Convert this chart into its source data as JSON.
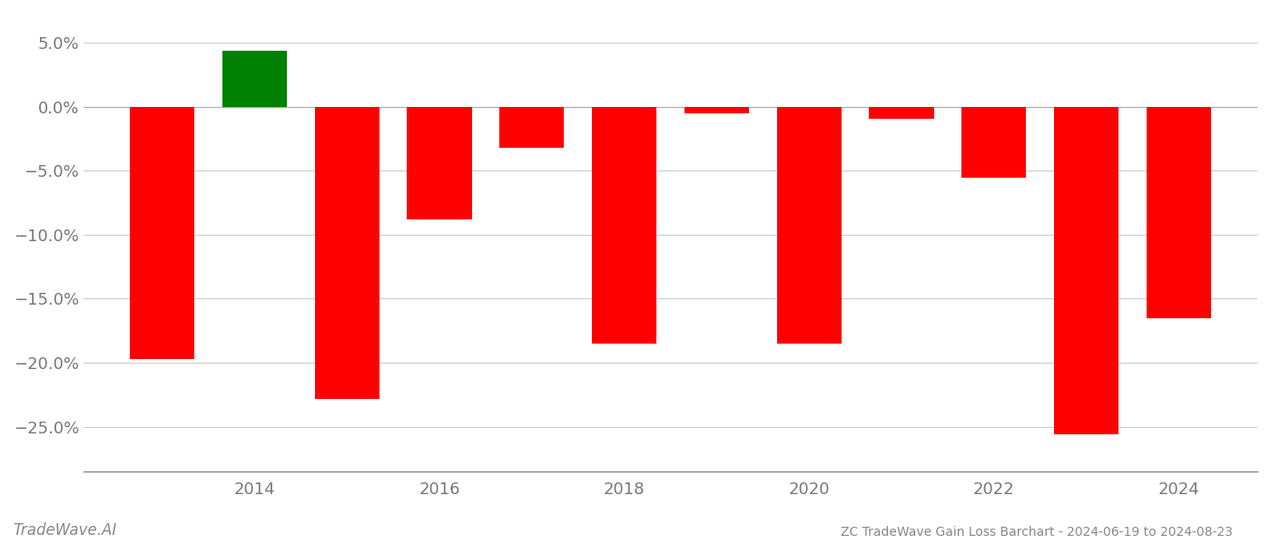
{
  "years": [
    2013,
    2014,
    2015,
    2016,
    2017,
    2018,
    2019,
    2020,
    2021,
    2022,
    2023,
    2024
  ],
  "values": [
    -0.197,
    0.044,
    -0.228,
    -0.088,
    -0.032,
    -0.185,
    -0.005,
    -0.185,
    -0.009,
    -0.055,
    -0.256,
    -0.165
  ],
  "colors": [
    "#ff0000",
    "#008000",
    "#ff0000",
    "#ff0000",
    "#ff0000",
    "#ff0000",
    "#ff0000",
    "#ff0000",
    "#ff0000",
    "#ff0000",
    "#ff0000",
    "#ff0000"
  ],
  "title": "ZC TradeWave Gain Loss Barchart - 2024-06-19 to 2024-08-23",
  "watermark": "TradeWave.AI",
  "ylim_min": -0.285,
  "ylim_max": 0.073,
  "yticks": [
    -0.25,
    -0.2,
    -0.15,
    -0.1,
    -0.05,
    0.0,
    0.05
  ],
  "xtick_labels": [
    "",
    "2014",
    "",
    "2016",
    "",
    "2018",
    "",
    "2020",
    "",
    "2022",
    "",
    "2024"
  ],
  "background_color": "#ffffff",
  "grid_color": "#cccccc",
  "bar_width": 0.7
}
